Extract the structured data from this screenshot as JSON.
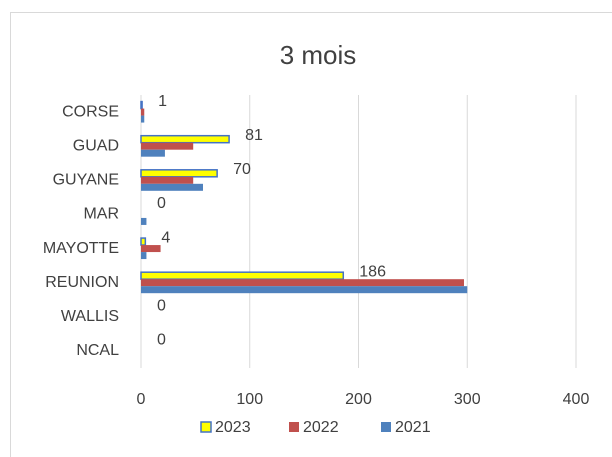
{
  "chart_data": {
    "type": "barh",
    "title": "3 mois",
    "categories": [
      "CORSE",
      "GUAD",
      "GUYANE",
      "MAR",
      "MAYOTTE",
      "REUNION",
      "WALLIS",
      "NCAL"
    ],
    "series": [
      {
        "name": "2023",
        "color": "#ffff00",
        "edge": "#4472c4",
        "data_labels": true,
        "values": [
          1,
          81,
          70,
          0,
          4,
          186,
          0,
          0
        ]
      },
      {
        "name": "2022",
        "color": "#c0504d",
        "values": [
          3,
          48,
          48,
          0,
          18,
          297,
          0,
          0
        ]
      },
      {
        "name": "2021",
        "color": "#4f81bd",
        "values": [
          3,
          22,
          57,
          5,
          5,
          300,
          0,
          0
        ]
      }
    ],
    "xlim": [
      0,
      400
    ],
    "xticks": [
      0,
      100,
      200,
      300,
      400
    ],
    "grid": true,
    "legend": "bottom"
  }
}
